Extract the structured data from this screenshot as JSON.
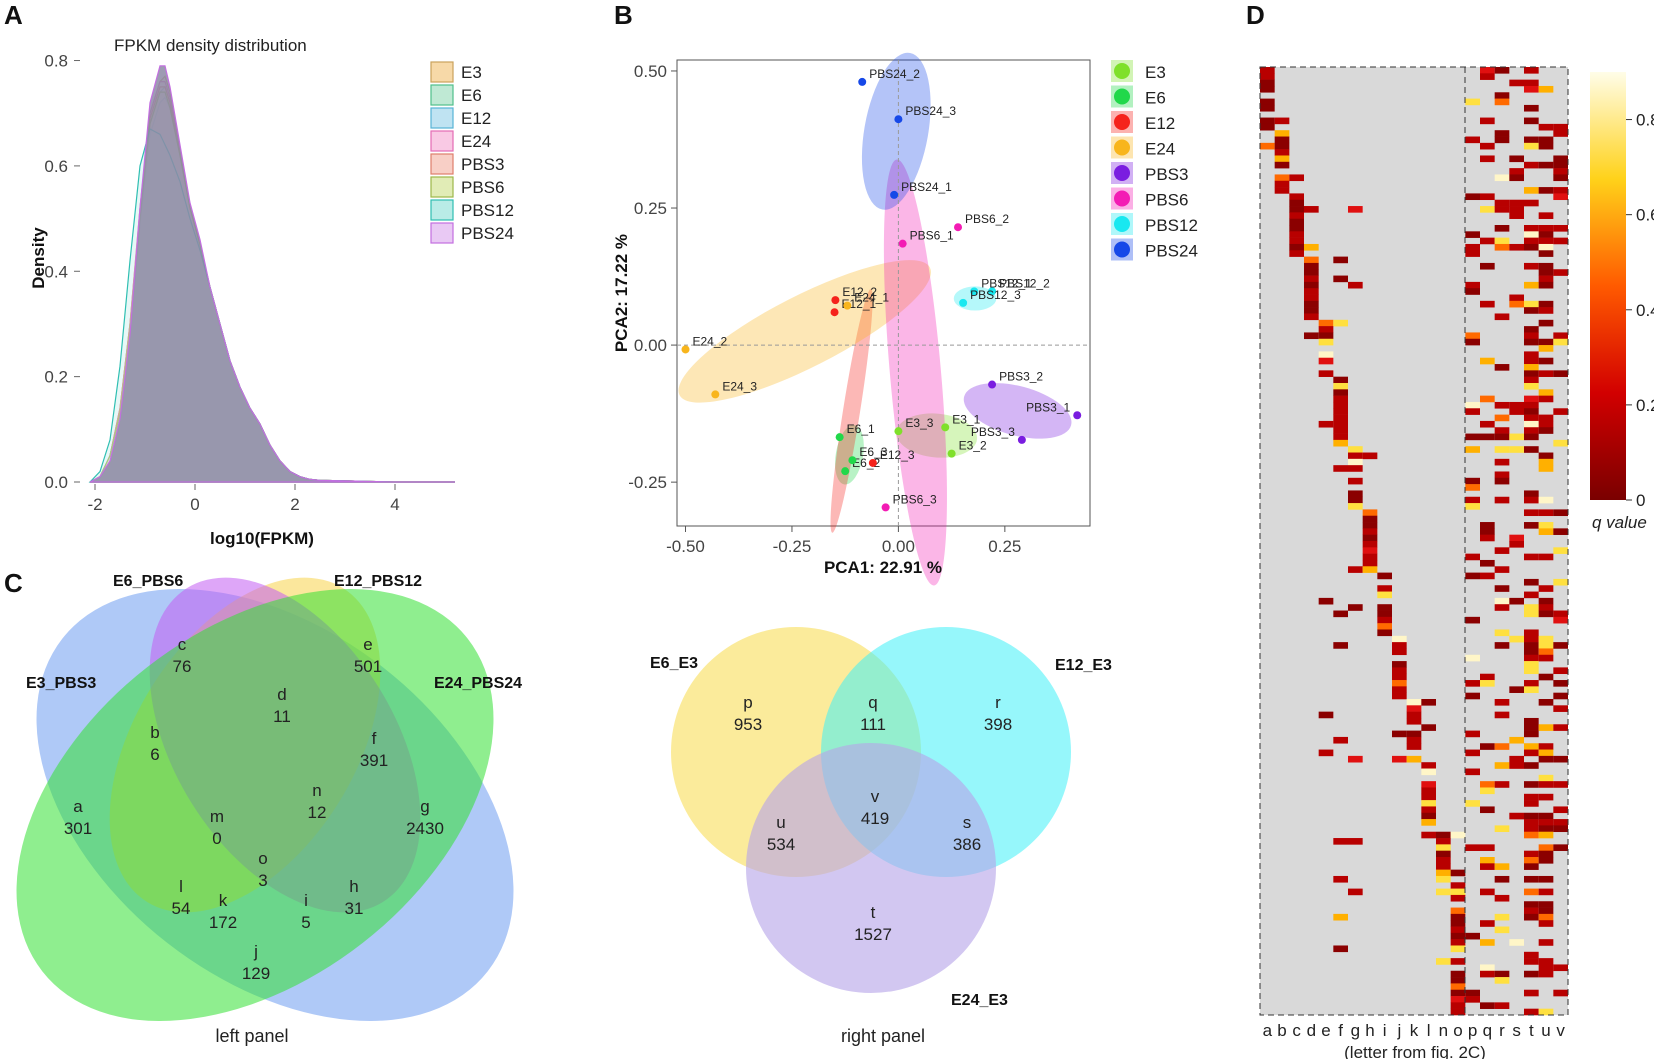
{
  "panel_labels": [
    "A",
    "B",
    "C",
    "D"
  ],
  "chart_data": [
    {
      "panel": "A",
      "type": "area",
      "title": "FPKM density distribution",
      "xlabel": "log10(FPKM)",
      "ylabel": "Density",
      "xlim": [
        -2.3,
        5.2
      ],
      "ylim": [
        0,
        0.82
      ],
      "xticks": [
        "-2",
        "0",
        "2",
        "4"
      ],
      "xtick_values": [
        -2,
        0,
        2,
        4
      ],
      "yticks": [
        "0.0",
        "0.2",
        "0.4",
        "0.6",
        "0.8"
      ],
      "ytick_values": [
        0,
        0.2,
        0.4,
        0.6,
        0.8
      ],
      "x": [
        -2.1,
        -1.9,
        -1.7,
        -1.5,
        -1.3,
        -1.1,
        -0.9,
        -0.7,
        -0.6,
        -0.5,
        -0.3,
        -0.1,
        0.1,
        0.3,
        0.5,
        0.7,
        0.9,
        1.1,
        1.3,
        1.5,
        1.7,
        1.9,
        2.1,
        2.3,
        2.5,
        3.0,
        3.5,
        4.0,
        5.2
      ],
      "series": [
        {
          "name": "E3",
          "fill": "#f7d9a8",
          "stroke": "#caa25c",
          "values": [
            0.0,
            0.01,
            0.05,
            0.14,
            0.3,
            0.52,
            0.7,
            0.76,
            0.77,
            0.74,
            0.63,
            0.52,
            0.45,
            0.37,
            0.29,
            0.23,
            0.18,
            0.14,
            0.11,
            0.07,
            0.04,
            0.02,
            0.01,
            0.005,
            0.003,
            0.002,
            0.001,
            0.0,
            0.0
          ]
        },
        {
          "name": "E6",
          "fill": "#bfe9d4",
          "stroke": "#4fbf8a",
          "values": [
            0.0,
            0.01,
            0.05,
            0.13,
            0.29,
            0.5,
            0.68,
            0.74,
            0.75,
            0.72,
            0.62,
            0.52,
            0.45,
            0.37,
            0.3,
            0.23,
            0.18,
            0.14,
            0.11,
            0.07,
            0.04,
            0.02,
            0.01,
            0.005,
            0.003,
            0.002,
            0.001,
            0.0,
            0.0
          ]
        },
        {
          "name": "E12",
          "fill": "#bfe3f2",
          "stroke": "#58b3d6",
          "values": [
            0.0,
            0.01,
            0.05,
            0.13,
            0.28,
            0.49,
            0.66,
            0.72,
            0.73,
            0.71,
            0.62,
            0.52,
            0.45,
            0.37,
            0.3,
            0.23,
            0.18,
            0.14,
            0.11,
            0.07,
            0.04,
            0.02,
            0.01,
            0.005,
            0.003,
            0.002,
            0.001,
            0.0,
            0.0
          ]
        },
        {
          "name": "E24",
          "fill": "#f9c9e4",
          "stroke": "#e46cb4",
          "values": [
            0.0,
            0.01,
            0.05,
            0.14,
            0.3,
            0.52,
            0.7,
            0.76,
            0.76,
            0.73,
            0.63,
            0.52,
            0.45,
            0.37,
            0.3,
            0.23,
            0.18,
            0.14,
            0.11,
            0.07,
            0.04,
            0.02,
            0.01,
            0.005,
            0.003,
            0.002,
            0.001,
            0.0,
            0.0
          ]
        },
        {
          "name": "PBS3",
          "fill": "#f8cfc6",
          "stroke": "#de7e6c",
          "values": [
            0.0,
            0.01,
            0.05,
            0.14,
            0.3,
            0.51,
            0.69,
            0.75,
            0.75,
            0.72,
            0.62,
            0.52,
            0.45,
            0.37,
            0.3,
            0.23,
            0.18,
            0.14,
            0.11,
            0.07,
            0.04,
            0.02,
            0.01,
            0.005,
            0.003,
            0.002,
            0.001,
            0.0,
            0.0
          ]
        },
        {
          "name": "PBS6",
          "fill": "#e1ecb6",
          "stroke": "#9cb84a",
          "values": [
            0.0,
            0.01,
            0.05,
            0.13,
            0.29,
            0.5,
            0.68,
            0.74,
            0.74,
            0.71,
            0.62,
            0.52,
            0.45,
            0.37,
            0.3,
            0.23,
            0.18,
            0.14,
            0.11,
            0.07,
            0.04,
            0.02,
            0.01,
            0.005,
            0.003,
            0.002,
            0.001,
            0.0,
            0.0
          ]
        },
        {
          "name": "PBS12",
          "fill": "#b9ece7",
          "stroke": "#2fbfb2",
          "values": [
            0.0,
            0.02,
            0.08,
            0.22,
            0.42,
            0.6,
            0.67,
            0.66,
            0.64,
            0.62,
            0.57,
            0.5,
            0.44,
            0.37,
            0.3,
            0.23,
            0.18,
            0.14,
            0.11,
            0.07,
            0.04,
            0.02,
            0.01,
            0.005,
            0.003,
            0.002,
            0.001,
            0.0,
            0.0
          ]
        },
        {
          "name": "PBS24",
          "fill": "#e9c9f4",
          "stroke": "#c36ee0",
          "values": [
            0.0,
            0.01,
            0.04,
            0.12,
            0.28,
            0.52,
            0.72,
            0.79,
            0.79,
            0.75,
            0.64,
            0.53,
            0.46,
            0.37,
            0.3,
            0.23,
            0.18,
            0.14,
            0.11,
            0.07,
            0.04,
            0.02,
            0.01,
            0.005,
            0.003,
            0.002,
            0.001,
            0.0,
            0.0
          ]
        }
      ]
    },
    {
      "panel": "B",
      "type": "scatter",
      "xlabel": "PCA1: 22.91 %",
      "ylabel": "PCA2: 17.22 %",
      "xlim": [
        -0.52,
        0.45
      ],
      "ylim": [
        -0.33,
        0.52
      ],
      "xticks": [
        "-0.50",
        "-0.25",
        "0.00",
        "0.25"
      ],
      "xtick_values": [
        -0.5,
        -0.25,
        0.0,
        0.25
      ],
      "yticks": [
        "-0.25",
        "0.00",
        "0.25",
        "0.50"
      ],
      "ytick_values": [
        -0.25,
        0.0,
        0.25,
        0.5
      ],
      "groups": [
        {
          "name": "E3",
          "color": "#7fe02a",
          "ellipse": {
            "cx": 0.09,
            "cy": -0.165,
            "rx": 0.095,
            "ry": 0.04,
            "angle": -5
          },
          "points": [
            {
              "label": "E3_1",
              "x": 0.11,
              "y": -0.15
            },
            {
              "label": "E3_2",
              "x": 0.125,
              "y": -0.198
            },
            {
              "label": "E3_3",
              "x": 0.0,
              "y": -0.157
            }
          ]
        },
        {
          "name": "E6",
          "color": "#21d84a",
          "ellipse": {
            "cx": -0.115,
            "cy": -0.2,
            "rx": 0.032,
            "ry": 0.055,
            "angle": -10
          },
          "points": [
            {
              "label": "E6_1",
              "x": -0.138,
              "y": -0.168
            },
            {
              "label": "E6_2",
              "x": -0.125,
              "y": -0.23
            },
            {
              "label": "E6_3",
              "x": -0.108,
              "y": -0.21
            }
          ]
        },
        {
          "name": "E12",
          "color": "#f5231c",
          "ellipse": {
            "cx": -0.11,
            "cy": -0.12,
            "rx": 0.02,
            "ry": 0.225,
            "angle": -9
          },
          "points": [
            {
              "label": "E12_1",
              "x": -0.15,
              "y": 0.06
            },
            {
              "label": "E12_2",
              "x": -0.148,
              "y": 0.082
            },
            {
              "label": "E12_3",
              "x": -0.06,
              "y": -0.215
            }
          ]
        },
        {
          "name": "E24",
          "color": "#f8b51c",
          "ellipse": {
            "cx": -0.22,
            "cy": 0.025,
            "rx": 0.33,
            "ry": 0.065,
            "angle": 27
          },
          "points": [
            {
              "label": "E24_1",
              "x": -0.12,
              "y": 0.072
            },
            {
              "label": "E24_2",
              "x": -0.5,
              "y": -0.008
            },
            {
              "label": "E24_3",
              "x": -0.43,
              "y": -0.09
            }
          ]
        },
        {
          "name": "PBS3",
          "color": "#7a1de0",
          "ellipse": {
            "cx": 0.28,
            "cy": -0.12,
            "rx": 0.13,
            "ry": 0.045,
            "angle": -15
          },
          "points": [
            {
              "label": "PBS3_1",
              "x": 0.42,
              "y": -0.128
            },
            {
              "label": "PBS3_2",
              "x": 0.22,
              "y": -0.072
            },
            {
              "label": "PBS3_3",
              "x": 0.29,
              "y": -0.173
            }
          ]
        },
        {
          "name": "PBS6",
          "color": "#f31bb4",
          "ellipse": {
            "cx": 0.04,
            "cy": -0.05,
            "rx": 0.06,
            "ry": 0.39,
            "angle": 5
          },
          "points": [
            {
              "label": "PBS6_1",
              "x": 0.01,
              "y": 0.185
            },
            {
              "label": "PBS6_2",
              "x": 0.14,
              "y": 0.215
            },
            {
              "label": "PBS6_3",
              "x": -0.03,
              "y": -0.296
            }
          ]
        },
        {
          "name": "PBS12",
          "color": "#19e8f0",
          "ellipse": {
            "cx": 0.18,
            "cy": 0.085,
            "rx": 0.05,
            "ry": 0.022,
            "angle": 0
          },
          "points": [
            {
              "label": "PBS12_1",
              "x": 0.178,
              "y": 0.098
            },
            {
              "label": "PBS12_2",
              "x": 0.22,
              "y": 0.098
            },
            {
              "label": "PBS12_3",
              "x": 0.152,
              "y": 0.077
            }
          ]
        },
        {
          "name": "PBS24",
          "color": "#1648e8",
          "ellipse": {
            "cx": -0.005,
            "cy": 0.39,
            "rx": 0.075,
            "ry": 0.145,
            "angle": -10
          },
          "points": [
            {
              "label": "PBS24_1",
              "x": -0.01,
              "y": 0.274
            },
            {
              "label": "PBS24_2",
              "x": -0.085,
              "y": 0.48
            },
            {
              "label": "PBS24_3",
              "x": 0.0,
              "y": 0.412
            }
          ]
        }
      ]
    },
    {
      "panel": "C-left",
      "type": "venn",
      "caption": "left panel",
      "sets": [
        {
          "name": "E3_PBS3",
          "color": "#6e9cf0"
        },
        {
          "name": "E6_PBS6",
          "color": "#f7d44a"
        },
        {
          "name": "E12_PBS12",
          "color": "#c25cf2"
        },
        {
          "name": "E24_PBS24",
          "color": "#33e033"
        }
      ],
      "regions": [
        {
          "id": "a",
          "value": 301
        },
        {
          "id": "b",
          "value": 6
        },
        {
          "id": "c",
          "value": 76
        },
        {
          "id": "d",
          "value": 11
        },
        {
          "id": "e",
          "value": 501
        },
        {
          "id": "f",
          "value": 391
        },
        {
          "id": "g",
          "value": 2430
        },
        {
          "id": "h",
          "value": 31
        },
        {
          "id": "i",
          "value": 5
        },
        {
          "id": "j",
          "value": 129
        },
        {
          "id": "k",
          "value": 172
        },
        {
          "id": "l",
          "value": 54
        },
        {
          "id": "m",
          "value": 0
        },
        {
          "id": "n",
          "value": 12
        },
        {
          "id": "o",
          "value": 3
        }
      ]
    },
    {
      "panel": "C-right",
      "type": "venn",
      "caption": "right panel",
      "sets": [
        {
          "name": "E6_E3",
          "color": "#f9e066"
        },
        {
          "name": "E12_E3",
          "color": "#3ff0f7"
        },
        {
          "name": "E24_E3",
          "color": "#b7a4e8"
        }
      ],
      "regions": [
        {
          "id": "p",
          "value": 953
        },
        {
          "id": "q",
          "value": 111
        },
        {
          "id": "r",
          "value": 398
        },
        {
          "id": "s",
          "value": 386
        },
        {
          "id": "t",
          "value": 1527
        },
        {
          "id": "u",
          "value": 534
        },
        {
          "id": "v",
          "value": 419
        }
      ]
    },
    {
      "panel": "D",
      "type": "heatmap",
      "xlabel": "(letter from fig. 2C)",
      "columns": [
        "a",
        "b",
        "c",
        "d",
        "e",
        "f",
        "g",
        "h",
        "i",
        "j",
        "k",
        "l",
        "n",
        "o",
        "p",
        "q",
        "r",
        "s",
        "t",
        "u",
        "v"
      ],
      "legend_title": "q value",
      "colorbar_ticks": [
        "0",
        "0.2",
        "0.4",
        "0.6",
        "0.8"
      ],
      "colorbar_values": [
        0,
        0.2,
        0.4,
        0.6,
        0.8
      ],
      "n_rows": 150,
      "background": "#d9d9d9",
      "seed": 7
    }
  ]
}
